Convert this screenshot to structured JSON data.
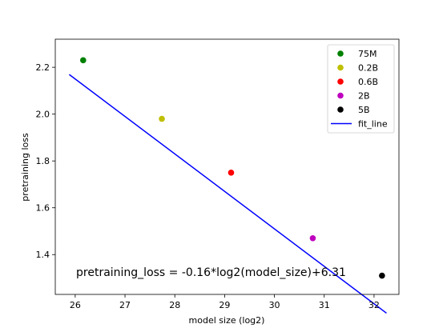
{
  "chart_data": {
    "type": "scatter",
    "xlabel": "model size (log2)",
    "ylabel": "pretraining loss",
    "xlim": [
      25.6,
      32.5
    ],
    "ylim": [
      1.23,
      2.32
    ],
    "xticks": [
      26,
      27,
      28,
      29,
      30,
      31,
      32
    ],
    "xtick_labels": [
      "26",
      "27",
      "28",
      "29",
      "30",
      "31",
      "32"
    ],
    "yticks": [
      1.4,
      1.6,
      1.8,
      2.0,
      2.2
    ],
    "ytick_labels": [
      "1.4",
      "1.6",
      "1.8",
      "2.0",
      "2.2"
    ],
    "grid": false,
    "legend_position": "top-right",
    "series": [
      {
        "name": "75M",
        "color": "#008000",
        "points": [
          {
            "x": 26.16,
            "y": 2.23
          }
        ]
      },
      {
        "name": "0.2B",
        "color": "#bfbf00",
        "points": [
          {
            "x": 27.74,
            "y": 1.98
          }
        ]
      },
      {
        "name": "0.6B",
        "color": "#ff0000",
        "points": [
          {
            "x": 29.13,
            "y": 1.75
          }
        ]
      },
      {
        "name": "2B",
        "color": "#bf00bf",
        "points": [
          {
            "x": 30.77,
            "y": 1.47
          }
        ]
      },
      {
        "name": "5B",
        "color": "#000000",
        "points": [
          {
            "x": 32.16,
            "y": 1.31
          }
        ]
      }
    ],
    "fit_line": {
      "name": "fit_line",
      "color": "#0000ff",
      "slope": -0.16,
      "intercept": 6.31,
      "x_start": 25.88,
      "x_end": 32.25
    },
    "annotation": "pretraining_loss = -0.16*log2(model_size)+6.31"
  }
}
